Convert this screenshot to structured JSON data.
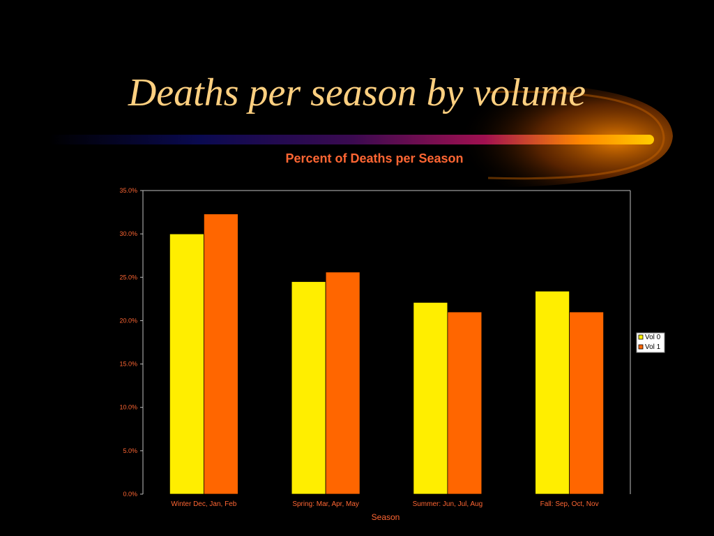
{
  "slide": {
    "title": "Deaths per season by volume"
  },
  "colors": {
    "vol0": "#ffee00",
    "vol1": "#ff6600",
    "text": "#ff6633",
    "axis": "#c0c0c0"
  },
  "chart_data": {
    "type": "bar",
    "title": "Percent of Deaths per Season",
    "xlabel": "Season",
    "ylabel": "",
    "categories": [
      "Winter Dec, Jan, Feb",
      "Spring: Mar, Apr, May",
      "Summer: Jun, Jul, Aug",
      "Fall: Sep, Oct, Nov"
    ],
    "series": [
      {
        "name": "Vol 0",
        "values": [
          30.0,
          24.5,
          22.1,
          23.4
        ]
      },
      {
        "name": "Vol 1",
        "values": [
          32.3,
          25.6,
          21.0,
          21.0
        ]
      }
    ],
    "ylim": [
      0,
      35
    ],
    "yticks": [
      "0.0%",
      "5.0%",
      "10.0%",
      "15.0%",
      "20.0%",
      "25.0%",
      "30.0%",
      "35.0%"
    ],
    "legend": "right"
  }
}
